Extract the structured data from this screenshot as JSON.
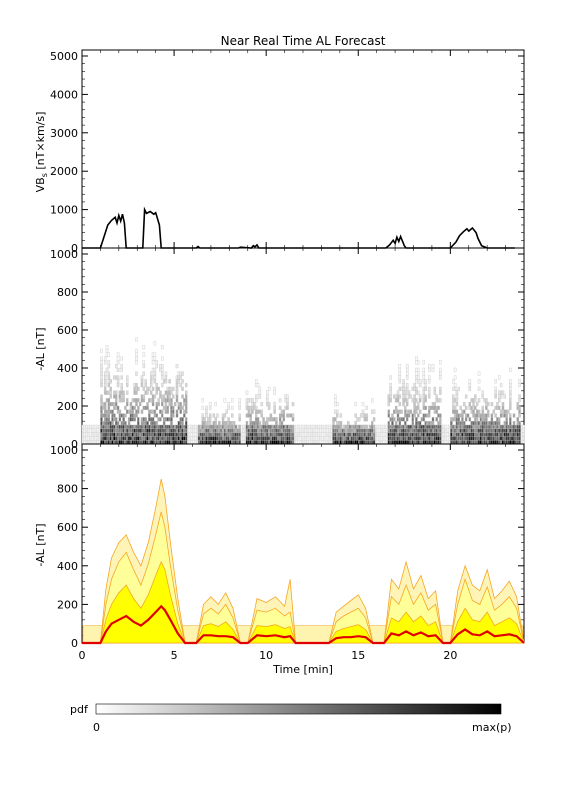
{
  "title": "Near Real Time AL Forecast",
  "colorbar": {
    "label": "pdf",
    "min_label": "0",
    "max_label": "max(p)",
    "colors": [
      "#ffffff",
      "#000000"
    ]
  },
  "colors": {
    "vbs_line": "#000000",
    "forecast_line": "#e00000",
    "band_inner": "#ffff00",
    "band_mid": "#ffff99",
    "band_outer": "#f5a623",
    "band_faint": "#fff3b0"
  },
  "chart_data": [
    {
      "type": "line",
      "panel": "VBs",
      "ylabel": "VB",
      "ylabel_sub": "s",
      "ylabel_units": " [nT×km/s]",
      "ylim": [
        0,
        5000
      ],
      "yticks": [
        0,
        1000,
        2000,
        3000,
        4000,
        5000
      ],
      "xlim": [
        0,
        24
      ],
      "xticks": [
        0,
        5,
        10,
        15,
        20
      ],
      "x": [
        0,
        1.0,
        1.2,
        1.4,
        1.6,
        1.8,
        1.9,
        2.0,
        2.1,
        2.2,
        2.3,
        2.4,
        2.5,
        2.6,
        3.3,
        3.4,
        3.5,
        3.7,
        3.9,
        4.0,
        4.2,
        4.3,
        4.4,
        5.5,
        6.2,
        6.3,
        6.4,
        8.5,
        8.6,
        9.2,
        9.3,
        9.4,
        9.5,
        9.6,
        10.5,
        13.0,
        16.5,
        16.7,
        16.9,
        17.0,
        17.1,
        17.2,
        17.3,
        17.5,
        17.6,
        18.2,
        20.0,
        20.3,
        20.5,
        20.7,
        20.9,
        21.0,
        21.2,
        21.4,
        21.5,
        21.7,
        22.0,
        23.5
      ],
      "y": [
        0,
        0,
        300,
        600,
        720,
        800,
        650,
        850,
        700,
        880,
        650,
        0,
        0,
        0,
        0,
        1000,
        900,
        950,
        880,
        920,
        600,
        0,
        0,
        0,
        0,
        40,
        0,
        0,
        20,
        0,
        60,
        30,
        80,
        0,
        0,
        0,
        0,
        80,
        200,
        120,
        280,
        170,
        300,
        60,
        0,
        0,
        0,
        150,
        320,
        420,
        500,
        440,
        520,
        400,
        250,
        60,
        0,
        0
      ]
    },
    {
      "type": "heatmap",
      "panel": "pdf",
      "ylabel": "-AL [nT]",
      "ylim": [
        0,
        1000
      ],
      "yticks": [
        0,
        200,
        400,
        600,
        800,
        1000
      ],
      "xlim": [
        0,
        24
      ],
      "xticks": [
        0,
        5,
        10,
        15,
        20
      ],
      "activity_intervals": [
        {
          "start": 1.0,
          "end": 5.6,
          "max": 550
        },
        {
          "start": 6.3,
          "end": 8.5,
          "max": 240
        },
        {
          "start": 8.9,
          "end": 11.4,
          "max": 330
        },
        {
          "start": 13.6,
          "end": 15.8,
          "max": 250
        },
        {
          "start": 16.6,
          "end": 19.5,
          "max": 450
        },
        {
          "start": 20.0,
          "end": 23.8,
          "max": 400
        }
      ]
    },
    {
      "type": "area",
      "panel": "forecast",
      "xlabel": "Time [min]",
      "ylabel": "-AL [nT]",
      "ylim": [
        0,
        1000
      ],
      "yticks": [
        0,
        200,
        400,
        600,
        800,
        1000
      ],
      "xlim": [
        0,
        24
      ],
      "xticks": [
        0,
        5,
        10,
        15,
        20
      ],
      "x": [
        0,
        1.0,
        1.3,
        1.6,
        2.0,
        2.4,
        2.8,
        3.2,
        3.6,
        4.0,
        4.3,
        4.5,
        4.8,
        5.2,
        5.6,
        6.2,
        6.6,
        7.0,
        7.4,
        7.8,
        8.2,
        8.6,
        9.0,
        9.5,
        10.0,
        10.5,
        11.0,
        11.3,
        11.6,
        13.4,
        13.8,
        14.2,
        14.6,
        15.0,
        15.4,
        15.8,
        16.4,
        16.8,
        17.2,
        17.6,
        18.0,
        18.4,
        18.8,
        19.2,
        19.6,
        20.0,
        20.4,
        20.8,
        21.2,
        21.6,
        22.0,
        22.4,
        22.8,
        23.2,
        23.6,
        24
      ],
      "series": [
        {
          "role": "forecast",
          "values": [
            0,
            0,
            60,
            100,
            120,
            140,
            110,
            90,
            120,
            160,
            190,
            170,
            120,
            50,
            0,
            0,
            40,
            40,
            35,
            35,
            30,
            0,
            0,
            40,
            35,
            40,
            30,
            35,
            0,
            0,
            25,
            30,
            30,
            35,
            30,
            0,
            0,
            50,
            40,
            60,
            40,
            55,
            35,
            40,
            0,
            0,
            45,
            70,
            45,
            40,
            60,
            35,
            40,
            45,
            35,
            0
          ]
        },
        {
          "role": "inner",
          "values": [
            0,
            0,
            120,
            200,
            260,
            300,
            230,
            180,
            250,
            350,
            420,
            380,
            250,
            100,
            0,
            0,
            90,
            100,
            85,
            110,
            70,
            0,
            0,
            90,
            85,
            95,
            75,
            85,
            0,
            0,
            60,
            75,
            85,
            95,
            70,
            0,
            0,
            130,
            110,
            160,
            110,
            140,
            90,
            110,
            0,
            0,
            110,
            180,
            120,
            110,
            160,
            90,
            110,
            130,
            100,
            0
          ]
        },
        {
          "role": "mid",
          "values": [
            0,
            0,
            200,
            330,
            420,
            470,
            380,
            300,
            410,
            560,
            680,
            600,
            400,
            170,
            0,
            0,
            150,
            180,
            150,
            200,
            130,
            0,
            0,
            170,
            160,
            180,
            140,
            160,
            0,
            0,
            110,
            140,
            160,
            180,
            130,
            0,
            0,
            240,
            200,
            300,
            200,
            260,
            170,
            200,
            0,
            0,
            200,
            330,
            220,
            200,
            290,
            170,
            200,
            240,
            180,
            0
          ]
        },
        {
          "role": "outer",
          "values": [
            0,
            0,
            280,
            440,
            520,
            560,
            470,
            400,
            520,
            700,
            850,
            760,
            520,
            230,
            0,
            0,
            200,
            240,
            200,
            260,
            180,
            0,
            0,
            230,
            210,
            240,
            190,
            330,
            0,
            0,
            160,
            190,
            220,
            250,
            180,
            0,
            0,
            330,
            280,
            420,
            280,
            350,
            230,
            270,
            0,
            0,
            270,
            400,
            300,
            270,
            380,
            230,
            270,
            320,
            240,
            0
          ]
        }
      ]
    }
  ]
}
